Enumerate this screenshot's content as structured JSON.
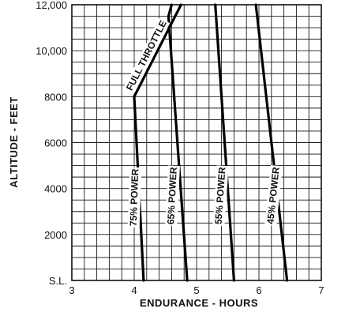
{
  "chart_data": {
    "type": "line",
    "title": "",
    "xlabel": "ENDURANCE - HOURS",
    "ylabel": "ALTITUDE - FEET",
    "xlim": [
      3,
      7
    ],
    "ylim": [
      0,
      12000
    ],
    "grid": true,
    "x_ticks": [
      {
        "value": 3,
        "label": "3"
      },
      {
        "value": 4,
        "label": "4"
      },
      {
        "value": 5,
        "label": "5"
      },
      {
        "value": 6,
        "label": "6"
      },
      {
        "value": 7,
        "label": "7"
      }
    ],
    "y_ticks": [
      {
        "value": 0,
        "label": "S.L."
      },
      {
        "value": 2000,
        "label": "2000"
      },
      {
        "value": 4000,
        "label": "4000"
      },
      {
        "value": 6000,
        "label": "6000"
      },
      {
        "value": 8000,
        "label": "8000"
      },
      {
        "value": 10000,
        "label": "10,000"
      },
      {
        "value": 12000,
        "label": "12,000"
      }
    ],
    "series": [
      {
        "name": "75% POWER",
        "points": [
          [
            4.15,
            0
          ],
          [
            4.0,
            8000
          ]
        ]
      },
      {
        "name": "FULL THROTTLE",
        "points": [
          [
            4.0,
            8000
          ],
          [
            4.75,
            12000
          ]
        ]
      },
      {
        "name": "65% POWER",
        "points": [
          [
            4.85,
            0
          ],
          [
            4.55,
            11500
          ],
          [
            4.6,
            12000
          ]
        ]
      },
      {
        "name": "55% POWER",
        "points": [
          [
            5.6,
            0
          ],
          [
            5.3,
            12000
          ]
        ]
      },
      {
        "name": "45% POWER",
        "points": [
          [
            6.45,
            0
          ],
          [
            5.95,
            12000
          ]
        ]
      }
    ]
  }
}
